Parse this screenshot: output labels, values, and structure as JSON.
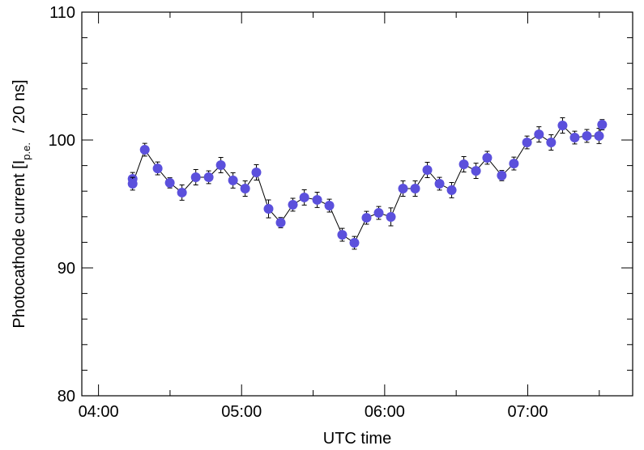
{
  "chart_data": {
    "type": "errorbar-line",
    "xlabel": "UTC time",
    "ylabel": "Photocathode current [I",
    "ylabel_sub": "p.e.",
    "ylabel_end": "/ 20 ns]",
    "x": [
      254.3,
      254.3,
      259.4,
      264.8,
      269.9,
      275.0,
      280.8,
      286.2,
      291.3,
      296.4,
      301.5,
      306.2,
      311.3,
      316.4,
      321.5,
      326.3,
      331.7,
      336.8,
      342.2,
      347.3,
      352.4,
      357.5,
      362.6,
      367.7,
      372.8,
      377.9,
      383.0,
      388.1,
      393.2,
      398.3,
      403.0,
      409.1,
      414.2,
      419.7,
      424.7,
      429.8,
      434.6,
      439.7,
      444.8,
      449.9,
      451.2
    ],
    "values": [
      96.96,
      96.58,
      99.24,
      97.78,
      96.65,
      95.89,
      97.09,
      97.09,
      98.04,
      96.84,
      96.2,
      97.47,
      94.62,
      93.54,
      94.94,
      95.51,
      95.32,
      94.87,
      92.59,
      91.96,
      93.92,
      94.3,
      93.99,
      96.2,
      96.2,
      97.66,
      96.58,
      96.08,
      98.1,
      97.59,
      98.61,
      97.22,
      98.16,
      99.81,
      100.44,
      99.81,
      101.14,
      100.19,
      100.32,
      100.32,
      101.2
    ],
    "errors": [
      0.5,
      0.5,
      0.5,
      0.5,
      0.4,
      0.6,
      0.6,
      0.5,
      0.6,
      0.6,
      0.6,
      0.6,
      0.7,
      0.4,
      0.5,
      0.6,
      0.6,
      0.5,
      0.5,
      0.5,
      0.5,
      0.5,
      0.7,
      0.6,
      0.6,
      0.6,
      0.5,
      0.6,
      0.6,
      0.6,
      0.5,
      0.4,
      0.5,
      0.5,
      0.6,
      0.6,
      0.6,
      0.5,
      0.5,
      0.6,
      0.4
    ],
    "color": "#5b50dc",
    "line_color": "#000000",
    "xlim": [
      233,
      464
    ],
    "xticks": [
      {
        "value": 240,
        "label": "04:00"
      },
      {
        "value": 300,
        "label": "05:00"
      },
      {
        "value": 360,
        "label": "06:00"
      },
      {
        "value": 420,
        "label": "07:00"
      }
    ],
    "xminorticks": [
      270,
      330,
      390,
      450
    ],
    "ylim": [
      80,
      110
    ],
    "yticks": [
      80,
      90,
      100,
      110
    ],
    "yminorticks": [
      82,
      84,
      86,
      88,
      92,
      94,
      96,
      98,
      102,
      104,
      106,
      108
    ]
  }
}
